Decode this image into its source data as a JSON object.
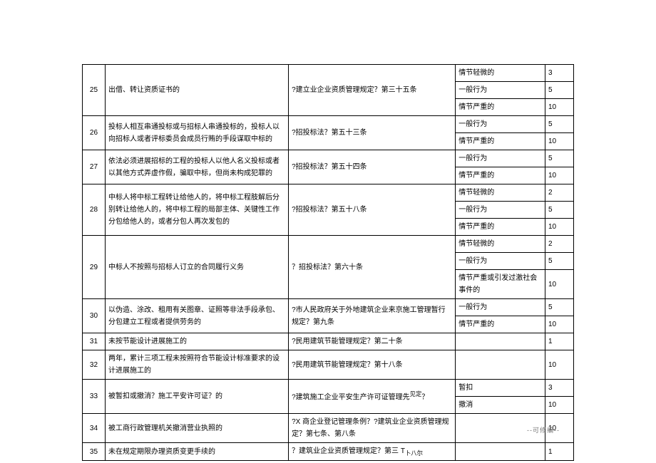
{
  "footer": "--可修编--",
  "rows": [
    {
      "num": "25",
      "desc": "出借、转让资质证书的",
      "law": "?建立业企业资质管理规定？第三十五条",
      "subs": [
        {
          "sev": "情节轻微的",
          "score": "3"
        },
        {
          "sev": "一般行为",
          "score": "5"
        },
        {
          "sev": "情节严重的",
          "score": "10"
        }
      ]
    },
    {
      "num": "26",
      "desc": "投标人相互串通投标或与招标人串通投标的，投标人以向招标人或者评标委员会成员行贿的手段谋取中标的",
      "law": "?招投标法？第五十三条",
      "subs": [
        {
          "sev": "一般行为",
          "score": "5"
        },
        {
          "sev": "情节严重的",
          "score": "10"
        }
      ]
    },
    {
      "num": "27",
      "desc": "依法必须进展招标的工程的投标人以他人名义投标或者以其他方式弄虚作假，骗取中标，但尚未构成犯罪的",
      "law": "?招投标法？第五十四条",
      "subs": [
        {
          "sev": "一般行为",
          "score": "5"
        },
        {
          "sev": "情节严重的",
          "score": "10"
        }
      ]
    },
    {
      "num": "28",
      "desc": "中标人将中标工程转让给他人的，将中标工程肢解后分别转让给他人的，将中标工程的局部主体、关键性工作分包给他人的，或者分包人再次发包的",
      "law": "?招投标法？第五十八条",
      "subs": [
        {
          "sev": "情节轻微的",
          "score": "2"
        },
        {
          "sev": "一般行为",
          "score": "5"
        },
        {
          "sev": "情节严重的",
          "score": "10"
        }
      ]
    },
    {
      "num": "29",
      "desc": "中标人不按照与招标人订立的合同履行义务",
      "law": "？招投标法？第六十条",
      "subs": [
        {
          "sev": "情节轻微的",
          "score": "2"
        },
        {
          "sev": "一般行为",
          "score": "5"
        },
        {
          "sev": "情节严重或引发过激社会事件的",
          "score": "10"
        }
      ]
    },
    {
      "num": "30",
      "desc": "以伪造、涂改、租用有关图章、证照等非法手段承包、分包建立工程或者提供劳务的",
      "law": "?市人民政府关于外地建筑企业来京施工管理暂行规定？第九条",
      "subs": [
        {
          "sev": "一般行为",
          "score": "5"
        },
        {
          "sev": "情节严重的",
          "score": "10"
        }
      ]
    },
    {
      "num": "31",
      "desc": "未按节能设计进展施工的",
      "law": "?民用建筑节能管理规定？第二十条",
      "subs": [
        {
          "sev": "",
          "score": "1"
        }
      ]
    },
    {
      "num": "32",
      "desc": "两年，累计三项工程未按照符合节能设计标准要求的设计进展施工的",
      "law": "?民用建筑节能管理规定？第十八条",
      "subs": [
        {
          "sev": "",
          "score": "10"
        }
      ]
    },
    {
      "num": "33",
      "desc": "被暂扣或撤消？施工平安许可证？的",
      "law": "?建筑施工企业平安生产许可证管理先",
      "lawSuffix": "<sup>见定</sup>？",
      "subs": [
        {
          "sev": "暂扣",
          "score": "3"
        },
        {
          "sev": "撤消",
          "score": "10"
        }
      ]
    },
    {
      "num": "34",
      "desc": "被工商行政管理机关撤消营业执照的",
      "law": "?X 商企业登记管理条例？?建筑业企业资质管理规定？第七条、第八条",
      "subs": [
        {
          "sev": "",
          "score": "10"
        }
      ]
    },
    {
      "num": "35",
      "desc": "未在规定期限办理资质变更手续的",
      "law": "？建筑业企业资质管理规定？第三 T",
      "lawSuffix": "<sub>卜八尔</sub>",
      "subs": [
        {
          "sev": "",
          "score": "1"
        }
      ]
    }
  ]
}
